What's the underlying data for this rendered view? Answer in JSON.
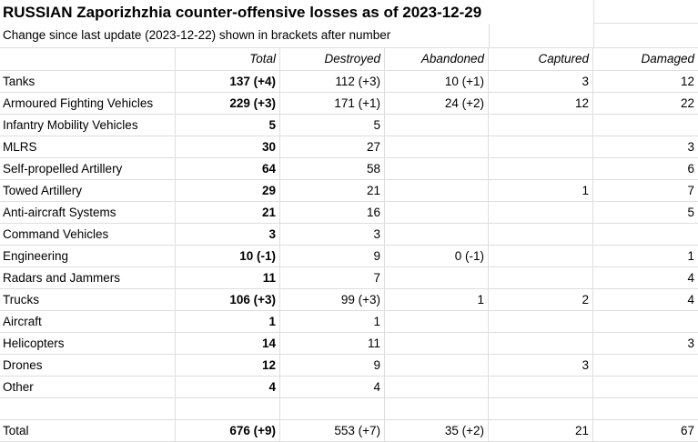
{
  "title": "RUSSIAN Zaporizhzhia counter-offensive losses as of 2023-12-29",
  "subtitle": "Change since last update (2023-12-22) shown in brackets after number",
  "columns": [
    "Total",
    "Destroyed",
    "Abandoned",
    "Captured",
    "Damaged"
  ],
  "rows": [
    {
      "label": "Tanks",
      "cells": [
        "137 (+4)",
        "112 (+3)",
        "10 (+1)",
        "3",
        "12"
      ]
    },
    {
      "label": "Armoured Fighting Vehicles",
      "cells": [
        "229 (+3)",
        "171 (+1)",
        "24 (+2)",
        "12",
        "22"
      ]
    },
    {
      "label": "Infantry Mobility Vehicles",
      "cells": [
        "5",
        "5",
        "",
        "",
        ""
      ]
    },
    {
      "label": "MLRS",
      "cells": [
        "30",
        "27",
        "",
        "",
        "3"
      ]
    },
    {
      "label": "Self-propelled Artillery",
      "cells": [
        "64",
        "58",
        "",
        "",
        "6"
      ]
    },
    {
      "label": "Towed Artillery",
      "cells": [
        "29",
        "21",
        "",
        "1",
        "7"
      ]
    },
    {
      "label": "Anti-aircraft Systems",
      "cells": [
        "21",
        "16",
        "",
        "",
        "5"
      ]
    },
    {
      "label": "Command Vehicles",
      "cells": [
        "3",
        "3",
        "",
        "",
        ""
      ]
    },
    {
      "label": "Engineering",
      "cells": [
        "10 (-1)",
        "9",
        "0 (-1)",
        "",
        "1"
      ]
    },
    {
      "label": "Radars and Jammers",
      "cells": [
        "11",
        "7",
        "",
        "",
        "4"
      ]
    },
    {
      "label": "Trucks",
      "cells": [
        "106 (+3)",
        "99 (+3)",
        "1",
        "2",
        "4"
      ]
    },
    {
      "label": "Aircraft",
      "cells": [
        "1",
        "1",
        "",
        "",
        ""
      ]
    },
    {
      "label": "Helicopters",
      "cells": [
        "14",
        "11",
        "",
        "",
        "3"
      ]
    },
    {
      "label": "Drones",
      "cells": [
        "12",
        "9",
        "",
        "3",
        ""
      ]
    },
    {
      "label": "Other",
      "cells": [
        "4",
        "4",
        "",
        "",
        ""
      ]
    }
  ],
  "total_row": {
    "label": "Total",
    "cells": [
      "676 (+9)",
      "553 (+7)",
      "35 (+2)",
      "21",
      "67"
    ]
  },
  "colors": {
    "gridline": "#dedede",
    "text": "#000000",
    "background": "#ffffff"
  }
}
